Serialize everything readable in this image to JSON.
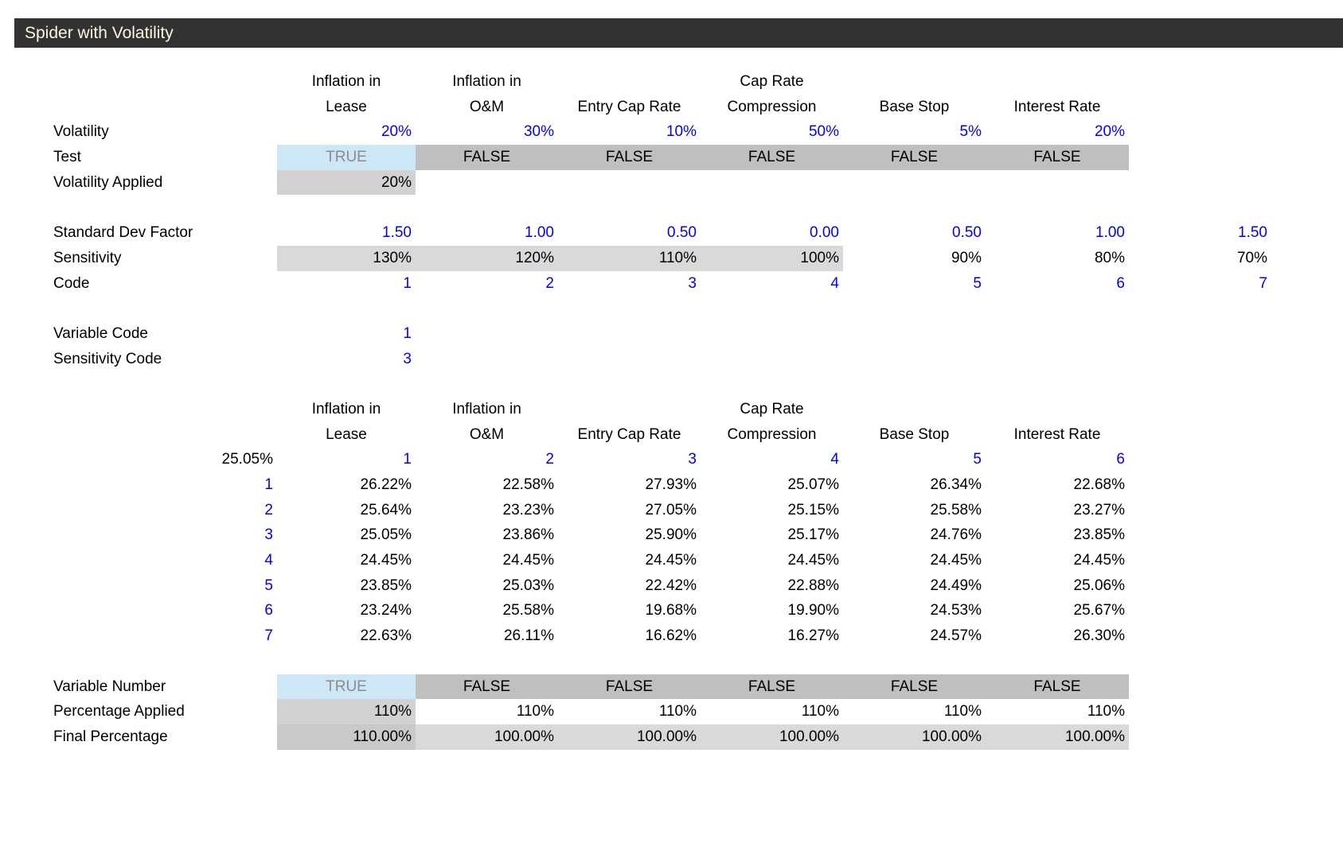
{
  "title": "Spider with Volatility",
  "colors": {
    "title_bar_bg": "#323232",
    "title_text": "#FAF6E2",
    "input_blue": "#0000FF",
    "true_bg": "#CDE7F7",
    "true_text": "#8C8C8C",
    "false_bg": "#BFBFBF",
    "band_gray": "#D9D9D9",
    "applied_gray": "#D2D2D2",
    "final_first_gray": "#C9C9C9"
  },
  "columns": [
    {
      "line1": "Inflation in",
      "line2": "Lease"
    },
    {
      "line1": "Inflation in",
      "line2": "O&M"
    },
    {
      "line1": "",
      "line2": "Entry Cap Rate"
    },
    {
      "line1": "Cap Rate",
      "line2": "Compression"
    },
    {
      "line1": "",
      "line2": "Base Stop"
    },
    {
      "line1": "",
      "line2": "Interest Rate"
    }
  ],
  "top": {
    "volatility": {
      "label": "Volatility",
      "values": [
        "20%",
        "30%",
        "10%",
        "50%",
        "5%",
        "20%"
      ]
    },
    "test": {
      "label": "Test",
      "values": [
        "TRUE",
        "FALSE",
        "FALSE",
        "FALSE",
        "FALSE",
        "FALSE"
      ]
    },
    "volatility_applied": {
      "label": "Volatility Applied",
      "value": "20%"
    }
  },
  "factors": {
    "std_dev_factor": {
      "label": "Standard Dev Factor",
      "values": [
        "1.50",
        "1.00",
        "0.50",
        "0.00",
        "0.50",
        "1.00",
        "1.50"
      ]
    },
    "sensitivity": {
      "label": "Sensitivity",
      "values": [
        "130%",
        "120%",
        "110%",
        "100%",
        "90%",
        "80%",
        "70%"
      ]
    },
    "code": {
      "label": "Code",
      "values": [
        "1",
        "2",
        "3",
        "4",
        "5",
        "6",
        "7"
      ]
    }
  },
  "selection": {
    "variable_code": {
      "label": "Variable Code",
      "value": "1"
    },
    "sensitivity_code": {
      "label": "Sensitivity Code",
      "value": "3"
    }
  },
  "matrix": {
    "base_value": "25.05%",
    "column_codes": [
      "1",
      "2",
      "3",
      "4",
      "5",
      "6"
    ],
    "rows": [
      {
        "index": "1",
        "values": [
          "26.22%",
          "22.58%",
          "27.93%",
          "25.07%",
          "26.34%",
          "22.68%"
        ]
      },
      {
        "index": "2",
        "values": [
          "25.64%",
          "23.23%",
          "27.05%",
          "25.15%",
          "25.58%",
          "23.27%"
        ]
      },
      {
        "index": "3",
        "values": [
          "25.05%",
          "23.86%",
          "25.90%",
          "25.17%",
          "24.76%",
          "23.85%"
        ]
      },
      {
        "index": "4",
        "values": [
          "24.45%",
          "24.45%",
          "24.45%",
          "24.45%",
          "24.45%",
          "24.45%"
        ]
      },
      {
        "index": "5",
        "values": [
          "23.85%",
          "25.03%",
          "22.42%",
          "22.88%",
          "24.49%",
          "25.06%"
        ]
      },
      {
        "index": "6",
        "values": [
          "23.24%",
          "25.58%",
          "19.68%",
          "19.90%",
          "24.53%",
          "25.67%"
        ]
      },
      {
        "index": "7",
        "values": [
          "22.63%",
          "26.11%",
          "16.62%",
          "16.27%",
          "24.57%",
          "26.30%"
        ]
      }
    ]
  },
  "bottom": {
    "variable_number": {
      "label": "Variable Number",
      "values": [
        "TRUE",
        "FALSE",
        "FALSE",
        "FALSE",
        "FALSE",
        "FALSE"
      ]
    },
    "percentage_applied": {
      "label": "Percentage Applied",
      "values": [
        "110%",
        "110%",
        "110%",
        "110%",
        "110%",
        "110%"
      ]
    },
    "final_percentage": {
      "label": "Final Percentage",
      "values": [
        "110.00%",
        "100.00%",
        "100.00%",
        "100.00%",
        "100.00%",
        "100.00%"
      ]
    }
  }
}
